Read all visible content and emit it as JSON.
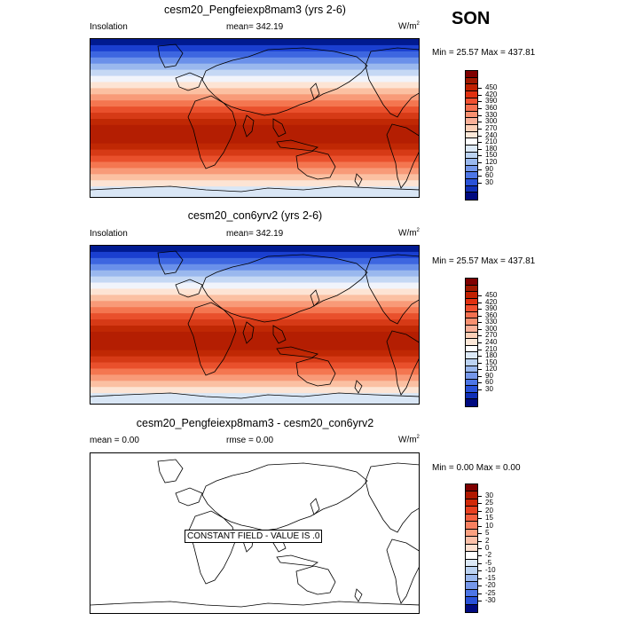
{
  "season": "SON",
  "panels": [
    {
      "title": "cesm20_Pengfeiexp8mam3 (yrs 2-6)",
      "left_label": "Insolation",
      "center_label": "mean= 342.19",
      "units": "W/m",
      "units_sup": "2",
      "minmax": "Min =  25.57 Max = 437.81",
      "field": "insolation",
      "colorbar": {
        "labels": [
          "450",
          "420",
          "390",
          "360",
          "330",
          "300",
          "270",
          "240",
          "210",
          "180",
          "150",
          "120",
          "90",
          "60",
          "30"
        ],
        "colors": [
          "#7f0000",
          "#a01800",
          "#c02000",
          "#e03010",
          "#f05030",
          "#f47050",
          "#f89070",
          "#fab098",
          "#fcd0b8",
          "#fde8d8",
          "#ffffff",
          "#dce9f7",
          "#bcd3f2",
          "#9ab8ee",
          "#7597ea",
          "#4d76e6",
          "#2a52d8",
          "#1030b8",
          "#000a80"
        ]
      },
      "constant_text": ""
    },
    {
      "title": "cesm20_con6yrv2 (yrs 2-6)",
      "left_label": "Insolation",
      "center_label": "mean= 342.19",
      "units": "W/m",
      "units_sup": "2",
      "minmax": "Min =  25.57 Max = 437.81",
      "field": "insolation",
      "colorbar": {
        "labels": [
          "450",
          "420",
          "390",
          "360",
          "330",
          "300",
          "270",
          "240",
          "210",
          "180",
          "150",
          "120",
          "90",
          "60",
          "30"
        ],
        "colors": [
          "#7f0000",
          "#a01800",
          "#c02000",
          "#e03010",
          "#f05030",
          "#f47050",
          "#f89070",
          "#fab098",
          "#fcd0b8",
          "#fde8d8",
          "#ffffff",
          "#dce9f7",
          "#bcd3f2",
          "#9ab8ee",
          "#7597ea",
          "#4d76e6",
          "#2a52d8",
          "#1030b8",
          "#000a80"
        ]
      },
      "constant_text": ""
    },
    {
      "title": "cesm20_Pengfeiexp8mam3 - cesm20_con6yrv2",
      "left_label": "mean =   0.00",
      "center_label": "rmse =   0.00",
      "units": "W/m",
      "units_sup": "2",
      "minmax": "Min =  0.00 Max =  0.00",
      "field": "difference",
      "colorbar": {
        "labels": [
          "30",
          "25",
          "20",
          "15",
          "10",
          "5",
          "2",
          "0",
          "-2",
          "-5",
          "-10",
          "-15",
          "-20",
          "-25",
          "-30"
        ],
        "colors": [
          "#7f0000",
          "#b01800",
          "#d02808",
          "#e84020",
          "#f46040",
          "#f88060",
          "#fba080",
          "#fcc0a8",
          "#fde0d0",
          "#ffffff",
          "#dce9f7",
          "#bcd3f2",
          "#9ab8ee",
          "#7597ea",
          "#4d76e6",
          "#2a52d8",
          "#000a80"
        ]
      },
      "constant_text": "CONSTANT FIELD - VALUE IS .0"
    }
  ]
}
